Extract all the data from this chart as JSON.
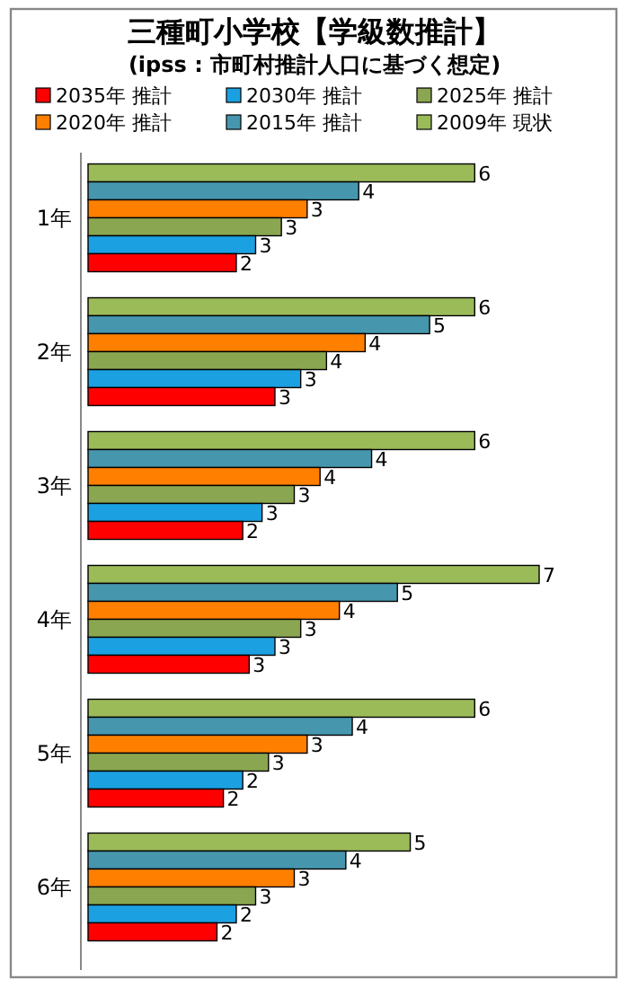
{
  "chart_data": {
    "type": "bar",
    "orientation": "horizontal",
    "legend": "top",
    "title": "三種町小学校【学級数推計】",
    "subtitle": "(ipss : 市町村推計人口に基づく想定)",
    "categories": [
      "1年",
      "2年",
      "3年",
      "4年",
      "5年",
      "6年"
    ],
    "series": [
      {
        "name": "2009年 現状",
        "color": "#9bbb59",
        "values": [
          6.0,
          6.0,
          6.0,
          7.0,
          6.0,
          5.0
        ],
        "value_labels": [
          "6",
          "6",
          "6",
          "7",
          "6",
          "5"
        ]
      },
      {
        "name": "2015年 推計",
        "color": "#4697ae",
        "values": [
          4.2,
          5.3,
          4.4,
          4.8,
          4.1,
          4.0
        ],
        "value_labels": [
          "4",
          "5",
          "4",
          "5",
          "4",
          "4"
        ]
      },
      {
        "name": "2020年 推計",
        "color": "#ff8000",
        "values": [
          3.4,
          4.3,
          3.6,
          3.9,
          3.4,
          3.2
        ],
        "value_labels": [
          "3",
          "4",
          "4",
          "4",
          "3",
          "3"
        ]
      },
      {
        "name": "2025年 推計",
        "color": "#8aa650",
        "values": [
          3.0,
          3.7,
          3.2,
          3.3,
          2.8,
          2.6
        ],
        "value_labels": [
          "3",
          "4",
          "3",
          "3",
          "3",
          "3"
        ]
      },
      {
        "name": "2030年 推計",
        "color": "#1ba1e2",
        "values": [
          2.6,
          3.3,
          2.7,
          2.9,
          2.4,
          2.3
        ],
        "value_labels": [
          "3",
          "3",
          "3",
          "3",
          "2",
          "2"
        ]
      },
      {
        "name": "2035年 推計",
        "color": "#ff0000",
        "values": [
          2.3,
          2.9,
          2.4,
          2.5,
          2.1,
          2.0
        ],
        "value_labels": [
          "2",
          "3",
          "2",
          "3",
          "2",
          "2"
        ]
      }
    ]
  }
}
